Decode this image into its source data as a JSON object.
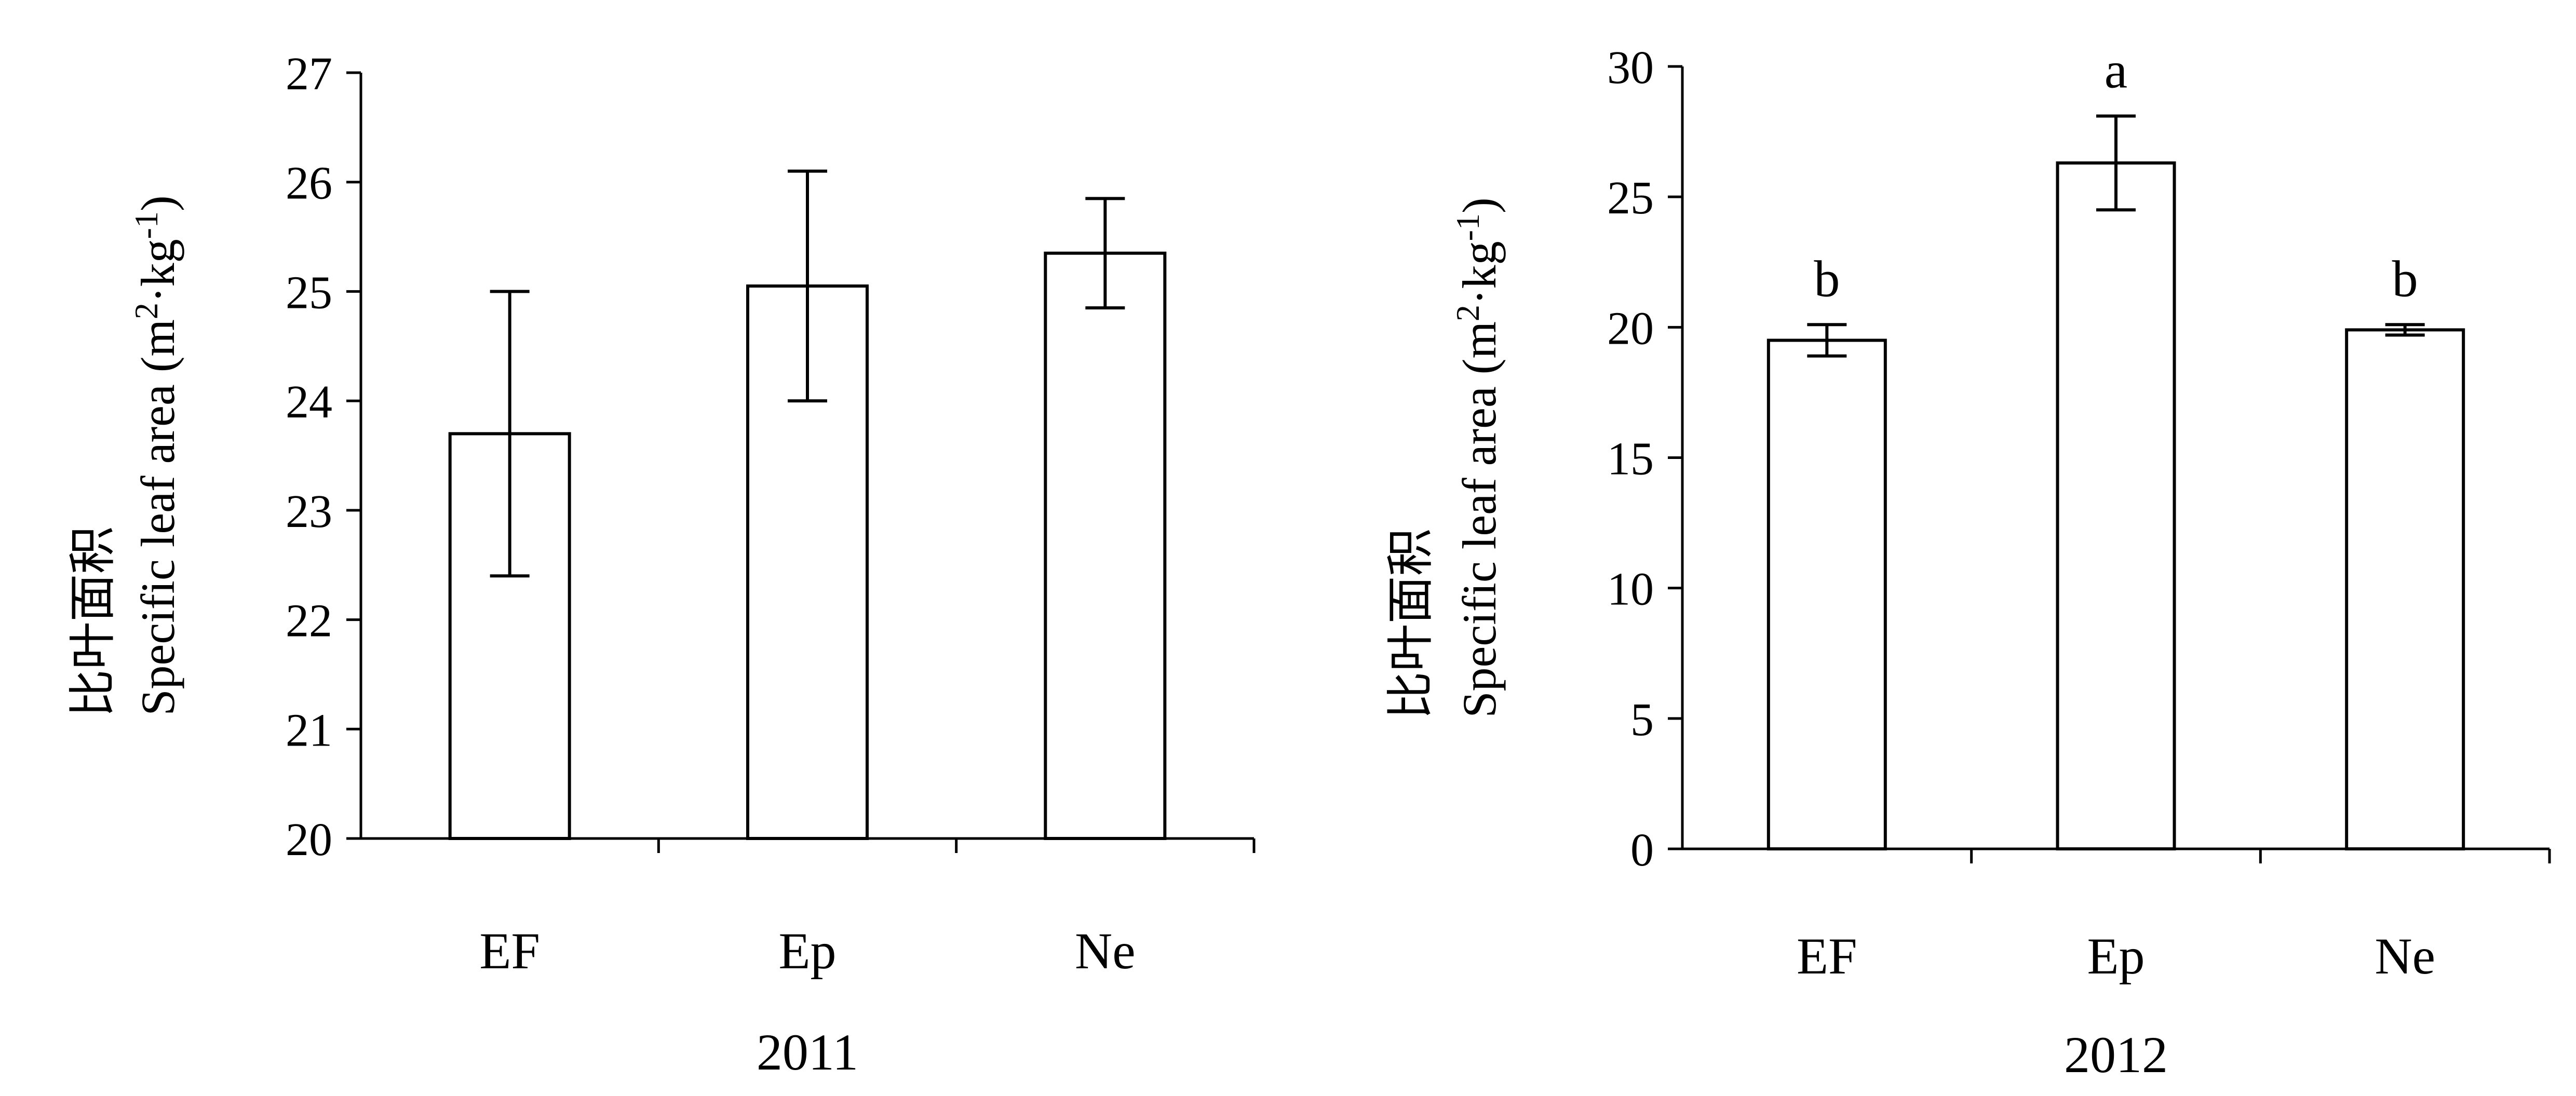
{
  "chart_data": [
    {
      "type": "bar",
      "title": "",
      "xlabel": "2011",
      "ylabel_cn": "比叶面积",
      "ylabel_en": "Specific leaf area (m",
      "ylabel_unit_sup1": "2",
      "ylabel_unit_mid": "·kg",
      "ylabel_unit_sup2": "-1",
      "ylabel_unit_end": ")",
      "categories": [
        "EF",
        "Ep",
        "Ne"
      ],
      "values": [
        23.7,
        25.05,
        25.35
      ],
      "errors": [
        1.3,
        1.05,
        0.5
      ],
      "significance": [
        "",
        "",
        ""
      ],
      "ylim": [
        20,
        27
      ],
      "yticks": [
        20,
        21,
        22,
        23,
        24,
        25,
        26,
        27
      ],
      "grid": false
    },
    {
      "type": "bar",
      "title": "",
      "xlabel": "2012",
      "ylabel_cn": "比叶面积",
      "ylabel_en": "Specific leaf area (m",
      "ylabel_unit_sup1": "2",
      "ylabel_unit_mid": "·kg",
      "ylabel_unit_sup2": "-1",
      "ylabel_unit_end": ")",
      "categories": [
        "EF",
        "Ep",
        "Ne"
      ],
      "values": [
        19.5,
        26.3,
        19.9
      ],
      "errors": [
        0.6,
        1.8,
        0.2
      ],
      "significance": [
        "b",
        "a",
        "b"
      ],
      "ylim": [
        0,
        30
      ],
      "yticks": [
        0,
        5,
        10,
        15,
        20,
        25,
        30
      ],
      "grid": false
    }
  ]
}
